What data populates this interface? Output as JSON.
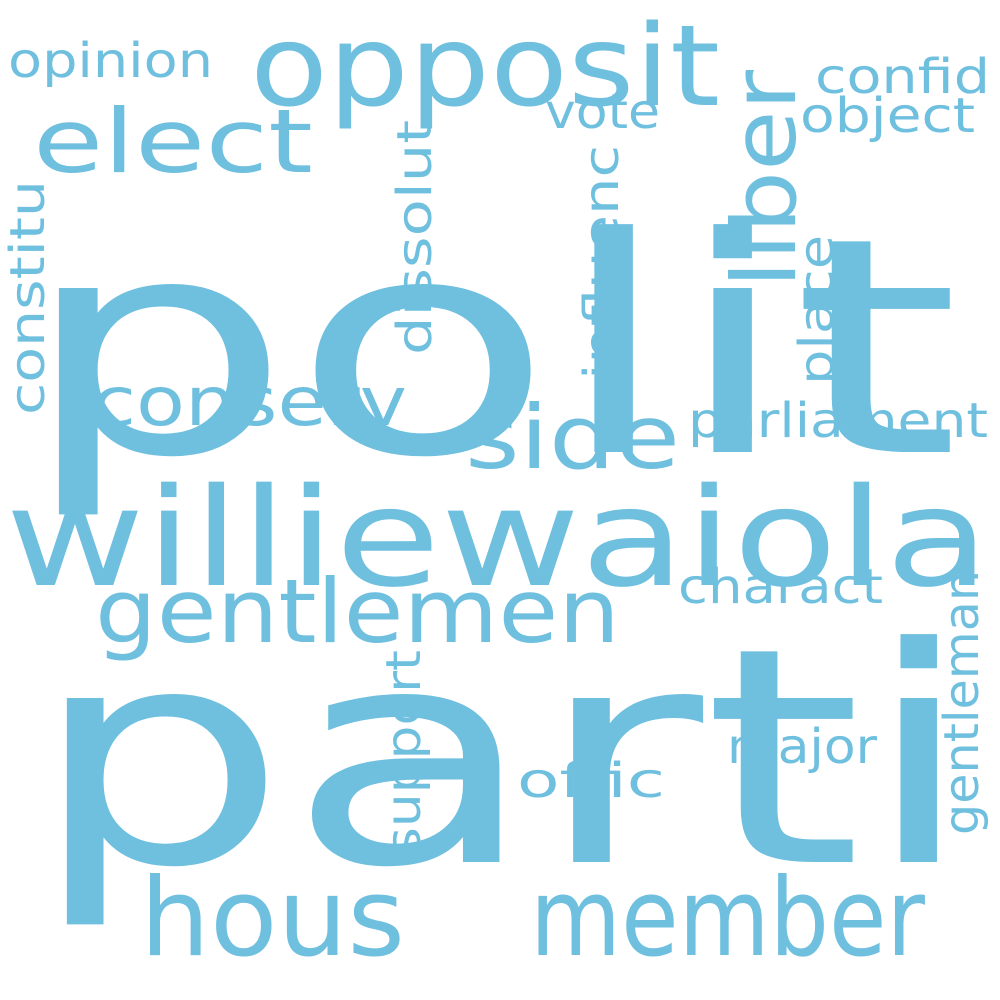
{
  "word_color": "#6fbfdf",
  "background": "#ffffff",
  "words": {
    "polit": "polit",
    "parti": "parti",
    "williewaiola": "williewaiola",
    "opposit": "opposit",
    "member": "member",
    "hous": "hous",
    "gentlemen": "gentlemen",
    "elect": "elect",
    "side": "side",
    "liber": "liber",
    "conserv": "conserv",
    "parliament": "parliament",
    "opinion": "opinion",
    "confid": "confid",
    "object": "object",
    "vote": "vote",
    "constitu": "constitu",
    "dissolut": "dissolut",
    "influenc": "influenc",
    "place": "place",
    "charact": "charact",
    "major": "major",
    "offic": "offic",
    "support": "support",
    "gentleman": "gentleman"
  }
}
